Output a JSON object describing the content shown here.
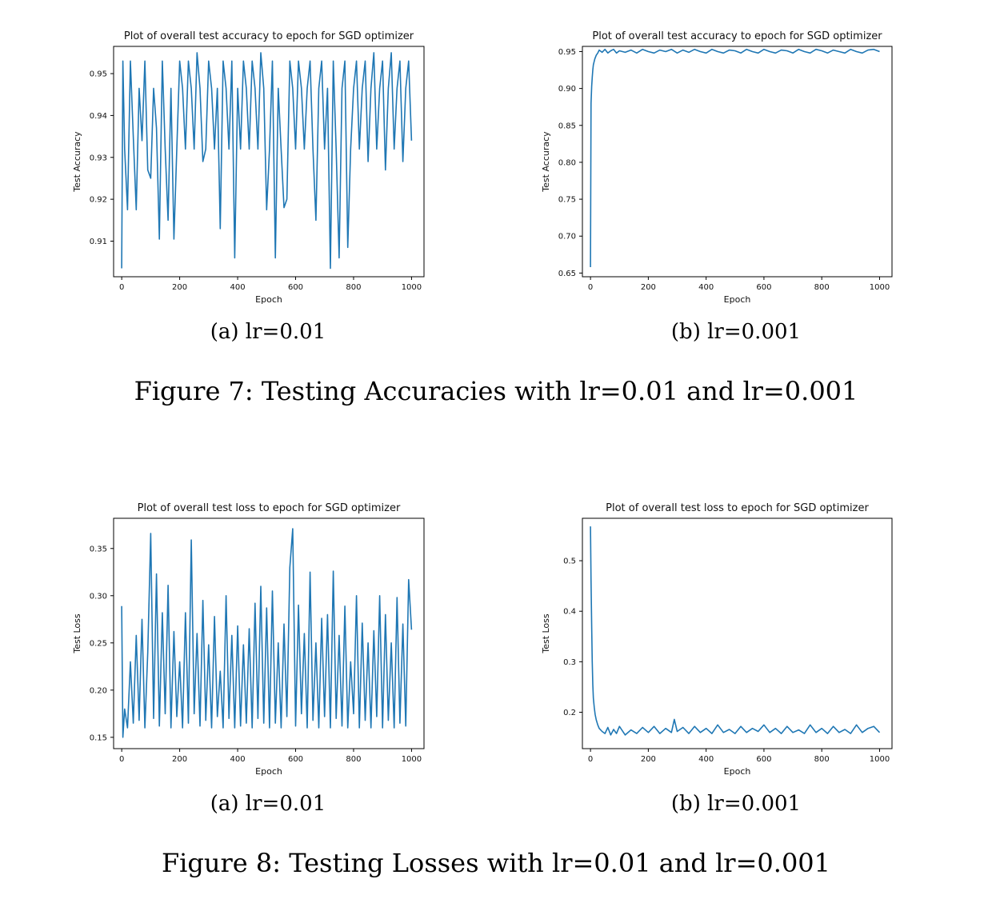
{
  "chart_data": [
    {
      "type": "line",
      "title": "Plot of overall test accuracy to epoch for SGD optimizer",
      "xlabel": "Epoch",
      "ylabel": "Test Accuracy",
      "xlim": [
        -28,
        1043
      ],
      "ylim": [
        0.9015,
        0.9565
      ],
      "xticks": [
        0,
        200,
        400,
        600,
        800,
        1000
      ],
      "yticks": [
        0.91,
        0.92,
        0.93,
        0.94,
        0.95
      ],
      "ytick_labels": [
        "0.91",
        "0.92",
        "0.93",
        "0.94",
        "0.95"
      ],
      "color": "#1f77b4",
      "grid": false,
      "x": [
        0,
        4,
        10,
        20,
        30,
        40,
        50,
        60,
        70,
        80,
        90,
        100,
        110,
        120,
        130,
        140,
        150,
        160,
        170,
        180,
        190,
        200,
        210,
        220,
        230,
        240,
        250,
        260,
        270,
        280,
        290,
        300,
        310,
        320,
        330,
        340,
        350,
        360,
        370,
        380,
        390,
        400,
        410,
        420,
        430,
        440,
        450,
        460,
        470,
        480,
        490,
        500,
        510,
        520,
        530,
        540,
        550,
        560,
        570,
        580,
        590,
        600,
        610,
        620,
        630,
        640,
        650,
        660,
        670,
        680,
        690,
        700,
        710,
        720,
        730,
        740,
        750,
        760,
        770,
        780,
        790,
        800,
        810,
        820,
        830,
        840,
        850,
        860,
        870,
        880,
        890,
        900,
        910,
        920,
        930,
        940,
        950,
        960,
        970,
        980,
        990,
        1000
      ],
      "series": [
        {
          "values": [
            0.9035,
            0.953,
            0.932,
            0.9175,
            0.953,
            0.935,
            0.9175,
            0.9465,
            0.934,
            0.953,
            0.927,
            0.925,
            0.9465,
            0.937,
            0.9105,
            0.953,
            0.932,
            0.915,
            0.9465,
            0.9105,
            0.932,
            0.953,
            0.9465,
            0.932,
            0.953,
            0.9465,
            0.932,
            0.955,
            0.9465,
            0.929,
            0.932,
            0.953,
            0.9465,
            0.932,
            0.9465,
            0.913,
            0.953,
            0.9465,
            0.932,
            0.953,
            0.906,
            0.9465,
            0.932,
            0.953,
            0.9465,
            0.932,
            0.953,
            0.9465,
            0.932,
            0.955,
            0.9465,
            0.9175,
            0.932,
            0.953,
            0.906,
            0.9465,
            0.932,
            0.918,
            0.92,
            0.953,
            0.9465,
            0.932,
            0.953,
            0.9465,
            0.932,
            0.9465,
            0.953,
            0.932,
            0.915,
            0.9465,
            0.953,
            0.932,
            0.9465,
            0.9035,
            0.953,
            0.932,
            0.906,
            0.9465,
            0.953,
            0.9085,
            0.932,
            0.9465,
            0.953,
            0.932,
            0.9465,
            0.953,
            0.929,
            0.9465,
            0.955,
            0.932,
            0.9465,
            0.953,
            0.927,
            0.9465,
            0.955,
            0.932,
            0.9465,
            0.953,
            0.929,
            0.9465,
            0.953,
            0.934
          ]
        }
      ]
    },
    {
      "type": "line",
      "title": "Plot of overall test accuracy to epoch for SGD optimizer",
      "xlabel": "Epoch",
      "ylabel": "Test Accuracy",
      "xlim": [
        -28,
        1043
      ],
      "ylim": [
        0.645,
        0.957
      ],
      "xticks": [
        0,
        200,
        400,
        600,
        800,
        1000
      ],
      "yticks": [
        0.65,
        0.7,
        0.75,
        0.8,
        0.85,
        0.9,
        0.95
      ],
      "ytick_labels": [
        "0.65",
        "0.70",
        "0.75",
        "0.80",
        "0.85",
        "0.90",
        "0.95"
      ],
      "color": "#1f77b4",
      "grid": false,
      "x": [
        0,
        2,
        4,
        6,
        8,
        10,
        15,
        20,
        25,
        30,
        40,
        50,
        60,
        70,
        80,
        90,
        100,
        120,
        140,
        160,
        180,
        200,
        220,
        240,
        260,
        280,
        300,
        320,
        340,
        360,
        380,
        400,
        420,
        440,
        460,
        480,
        500,
        520,
        540,
        560,
        580,
        600,
        620,
        640,
        660,
        680,
        700,
        720,
        740,
        760,
        780,
        800,
        820,
        840,
        860,
        880,
        900,
        920,
        940,
        960,
        980,
        1000
      ],
      "series": [
        {
          "values": [
            0.658,
            0.88,
            0.903,
            0.915,
            0.925,
            0.932,
            0.94,
            0.945,
            0.948,
            0.952,
            0.949,
            0.953,
            0.948,
            0.951,
            0.953,
            0.948,
            0.951,
            0.949,
            0.952,
            0.948,
            0.953,
            0.95,
            0.948,
            0.952,
            0.95,
            0.953,
            0.948,
            0.952,
            0.949,
            0.953,
            0.95,
            0.948,
            0.953,
            0.95,
            0.948,
            0.952,
            0.951,
            0.948,
            0.953,
            0.95,
            0.948,
            0.953,
            0.95,
            0.948,
            0.952,
            0.951,
            0.948,
            0.953,
            0.95,
            0.948,
            0.953,
            0.951,
            0.948,
            0.952,
            0.95,
            0.948,
            0.953,
            0.95,
            0.948,
            0.952,
            0.953,
            0.95
          ]
        }
      ]
    },
    {
      "type": "line",
      "title": "Plot of overall test loss to epoch for SGD optimizer",
      "xlabel": "Epoch",
      "ylabel": "Test Loss",
      "xlim": [
        -28,
        1043
      ],
      "ylim": [
        0.138,
        0.382
      ],
      "xticks": [
        0,
        200,
        400,
        600,
        800,
        1000
      ],
      "yticks": [
        0.15,
        0.2,
        0.25,
        0.3,
        0.35
      ],
      "ytick_labels": [
        "0.15",
        "0.20",
        "0.25",
        "0.30",
        "0.35"
      ],
      "color": "#1f77b4",
      "grid": false,
      "x": [
        0,
        4,
        10,
        20,
        30,
        40,
        50,
        60,
        70,
        80,
        90,
        100,
        110,
        120,
        130,
        140,
        150,
        160,
        170,
        180,
        190,
        200,
        210,
        220,
        230,
        240,
        250,
        260,
        270,
        280,
        290,
        300,
        310,
        320,
        330,
        340,
        350,
        360,
        370,
        380,
        390,
        400,
        410,
        420,
        430,
        440,
        450,
        460,
        470,
        480,
        490,
        500,
        510,
        520,
        530,
        540,
        550,
        560,
        570,
        580,
        590,
        600,
        610,
        620,
        630,
        640,
        650,
        660,
        670,
        680,
        690,
        700,
        710,
        720,
        730,
        740,
        750,
        760,
        770,
        780,
        790,
        800,
        810,
        820,
        830,
        840,
        850,
        860,
        870,
        880,
        890,
        900,
        910,
        920,
        930,
        940,
        950,
        960,
        970,
        980,
        990,
        1000
      ],
      "series": [
        {
          "values": [
            0.289,
            0.15,
            0.18,
            0.16,
            0.23,
            0.165,
            0.258,
            0.168,
            0.275,
            0.16,
            0.24,
            0.366,
            0.17,
            0.323,
            0.162,
            0.282,
            0.175,
            0.311,
            0.16,
            0.262,
            0.172,
            0.23,
            0.16,
            0.282,
            0.165,
            0.359,
            0.175,
            0.26,
            0.162,
            0.295,
            0.168,
            0.248,
            0.16,
            0.278,
            0.172,
            0.22,
            0.16,
            0.3,
            0.17,
            0.258,
            0.16,
            0.268,
            0.162,
            0.248,
            0.165,
            0.265,
            0.16,
            0.292,
            0.17,
            0.31,
            0.165,
            0.287,
            0.16,
            0.305,
            0.165,
            0.25,
            0.16,
            0.27,
            0.172,
            0.33,
            0.371,
            0.162,
            0.29,
            0.175,
            0.26,
            0.16,
            0.325,
            0.168,
            0.25,
            0.16,
            0.276,
            0.172,
            0.28,
            0.16,
            0.326,
            0.17,
            0.258,
            0.162,
            0.289,
            0.16,
            0.23,
            0.175,
            0.3,
            0.16,
            0.271,
            0.168,
            0.25,
            0.16,
            0.263,
            0.172,
            0.3,
            0.16,
            0.28,
            0.168,
            0.25,
            0.16,
            0.298,
            0.165,
            0.27,
            0.162,
            0.317,
            0.264
          ]
        }
      ]
    },
    {
      "type": "line",
      "title": "Plot of overall test loss to epoch for SGD optimizer",
      "xlabel": "Epoch",
      "ylabel": "Test Loss",
      "xlim": [
        -28,
        1043
      ],
      "ylim": [
        0.128,
        0.584
      ],
      "xticks": [
        0,
        200,
        400,
        600,
        800,
        1000
      ],
      "yticks": [
        0.2,
        0.3,
        0.4,
        0.5
      ],
      "ytick_labels": [
        "0.2",
        "0.3",
        "0.4",
        "0.5"
      ],
      "color": "#1f77b4",
      "grid": false,
      "x": [
        0,
        2,
        4,
        6,
        8,
        10,
        13,
        16,
        20,
        25,
        30,
        40,
        50,
        60,
        70,
        80,
        90,
        100,
        120,
        140,
        160,
        180,
        200,
        220,
        240,
        260,
        280,
        290,
        300,
        320,
        340,
        360,
        380,
        400,
        420,
        440,
        460,
        480,
        500,
        520,
        540,
        560,
        580,
        600,
        620,
        640,
        660,
        680,
        700,
        720,
        740,
        760,
        780,
        800,
        820,
        840,
        860,
        880,
        900,
        920,
        940,
        960,
        980,
        1000
      ],
      "series": [
        {
          "values": [
            0.568,
            0.46,
            0.37,
            0.3,
            0.255,
            0.228,
            0.21,
            0.196,
            0.185,
            0.175,
            0.168,
            0.162,
            0.158,
            0.17,
            0.155,
            0.166,
            0.158,
            0.172,
            0.155,
            0.165,
            0.158,
            0.17,
            0.16,
            0.172,
            0.158,
            0.168,
            0.16,
            0.186,
            0.162,
            0.17,
            0.158,
            0.172,
            0.16,
            0.168,
            0.158,
            0.175,
            0.16,
            0.166,
            0.158,
            0.172,
            0.16,
            0.168,
            0.162,
            0.175,
            0.16,
            0.168,
            0.158,
            0.172,
            0.16,
            0.165,
            0.158,
            0.175,
            0.16,
            0.168,
            0.158,
            0.172,
            0.16,
            0.166,
            0.158,
            0.175,
            0.16,
            0.168,
            0.172,
            0.16
          ]
        }
      ]
    }
  ],
  "figures": [
    {
      "subcaptions": [
        "(a) lr=0.01",
        "(b) lr=0.001"
      ],
      "caption": "Figure 7: Testing Accuracies with lr=0.01 and lr=0.001"
    },
    {
      "subcaptions": [
        "(a) lr=0.01",
        "(b) lr=0.001"
      ],
      "caption": "Figure 8: Testing Losses with lr=0.01 and lr=0.001"
    }
  ]
}
